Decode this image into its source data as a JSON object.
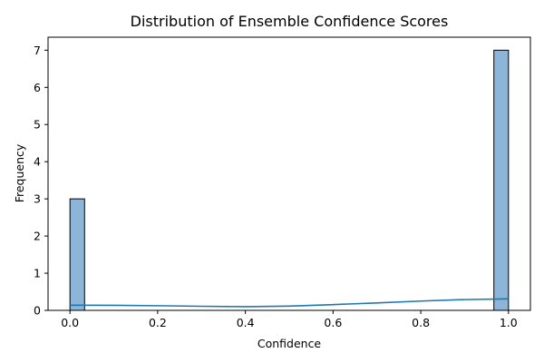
{
  "chart_data": {
    "type": "bar",
    "title": "Distribution of Ensemble Confidence Scores",
    "xlabel": "Confidence",
    "ylabel": "Frequency",
    "xlim": [
      -0.05,
      1.05
    ],
    "ylim": [
      0,
      7.35
    ],
    "xticks": [
      0.0,
      0.2,
      0.4,
      0.6,
      0.8,
      1.0
    ],
    "xtick_labels": [
      "0.0",
      "0.2",
      "0.4",
      "0.6",
      "0.8",
      "1.0"
    ],
    "yticks": [
      0,
      1,
      2,
      3,
      4,
      5,
      6,
      7
    ],
    "ytick_labels": [
      "0",
      "1",
      "2",
      "3",
      "4",
      "5",
      "6",
      "7"
    ],
    "bins": [
      {
        "x0": 0.0,
        "x1": 0.0333,
        "count": 3
      },
      {
        "x0": 0.9667,
        "x1": 1.0,
        "count": 7
      }
    ],
    "kde": {
      "name": "",
      "x": [
        0.0,
        0.1,
        0.2,
        0.3,
        0.4,
        0.5,
        0.6,
        0.7,
        0.8,
        0.9,
        1.0
      ],
      "y": [
        0.14,
        0.135,
        0.125,
        0.11,
        0.1,
        0.115,
        0.155,
        0.2,
        0.25,
        0.29,
        0.31
      ]
    },
    "bar_color": "#8db5d7",
    "line_color": "#1f77b4",
    "grid": false
  }
}
